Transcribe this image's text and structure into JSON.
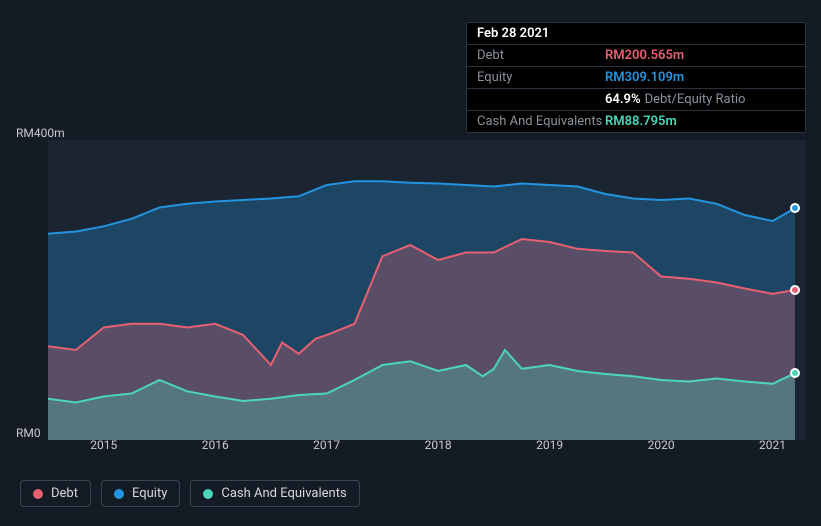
{
  "tooltip": {
    "date": "Feb 28 2021",
    "rows": [
      {
        "label": "Debt",
        "value": "RM200.565m",
        "colorKey": "debt"
      },
      {
        "label": "Equity",
        "value": "RM309.109m",
        "colorKey": "equity"
      },
      {
        "label": "",
        "value": "64.9%",
        "extra": "Debt/Equity Ratio",
        "colorKey": "white"
      },
      {
        "label": "Cash And Equivalents",
        "value": "RM88.795m",
        "colorKey": "cash"
      }
    ]
  },
  "chart": {
    "type": "area",
    "background_color": "#151b24",
    "plot_background": "#1b2531",
    "y_min": 0,
    "y_max": 400,
    "y_labels": [
      {
        "text": "RM400m",
        "v": 400
      },
      {
        "text": "RM0",
        "v": 0
      }
    ],
    "x_min": 2014.5,
    "x_max": 2021.3,
    "x_ticks": [
      2015,
      2016,
      2017,
      2018,
      2019,
      2020,
      2021
    ],
    "series": {
      "equity": {
        "label": "Equity",
        "color": "#2394df",
        "fill": "rgba(35,148,223,0.30)",
        "data": [
          [
            2014.5,
            275
          ],
          [
            2014.75,
            278
          ],
          [
            2015,
            285
          ],
          [
            2015.25,
            295
          ],
          [
            2015.5,
            310
          ],
          [
            2015.75,
            315
          ],
          [
            2016,
            318
          ],
          [
            2016.25,
            320
          ],
          [
            2016.5,
            322
          ],
          [
            2016.75,
            325
          ],
          [
            2017,
            340
          ],
          [
            2017.25,
            345
          ],
          [
            2017.5,
            345
          ],
          [
            2017.75,
            343
          ],
          [
            2018,
            342
          ],
          [
            2018.25,
            340
          ],
          [
            2018.5,
            338
          ],
          [
            2018.75,
            342
          ],
          [
            2019,
            340
          ],
          [
            2019.25,
            338
          ],
          [
            2019.5,
            328
          ],
          [
            2019.75,
            322
          ],
          [
            2020,
            320
          ],
          [
            2020.25,
            322
          ],
          [
            2020.5,
            315
          ],
          [
            2020.75,
            300
          ],
          [
            2021,
            292
          ],
          [
            2021.2,
            309
          ]
        ]
      },
      "debt": {
        "label": "Debt",
        "color": "#e76071",
        "fill": "rgba(231,96,113,0.30)",
        "data": [
          [
            2014.5,
            125
          ],
          [
            2014.75,
            120
          ],
          [
            2015,
            150
          ],
          [
            2015.25,
            155
          ],
          [
            2015.5,
            155
          ],
          [
            2015.75,
            150
          ],
          [
            2016,
            155
          ],
          [
            2016.25,
            140
          ],
          [
            2016.5,
            100
          ],
          [
            2016.6,
            130
          ],
          [
            2016.75,
            115
          ],
          [
            2016.9,
            135
          ],
          [
            2017,
            140
          ],
          [
            2017.25,
            155
          ],
          [
            2017.5,
            245
          ],
          [
            2017.75,
            260
          ],
          [
            2018,
            240
          ],
          [
            2018.25,
            250
          ],
          [
            2018.5,
            250
          ],
          [
            2018.75,
            268
          ],
          [
            2019,
            264
          ],
          [
            2019.25,
            255
          ],
          [
            2019.5,
            252
          ],
          [
            2019.75,
            250
          ],
          [
            2020,
            218
          ],
          [
            2020.25,
            215
          ],
          [
            2020.5,
            210
          ],
          [
            2020.75,
            202
          ],
          [
            2021,
            195
          ],
          [
            2021.2,
            200
          ]
        ]
      },
      "cash": {
        "label": "Cash And Equivalents",
        "color": "#4bd6b9",
        "fill": "rgba(75,214,185,0.30)",
        "data": [
          [
            2014.5,
            55
          ],
          [
            2014.75,
            50
          ],
          [
            2015,
            58
          ],
          [
            2015.25,
            62
          ],
          [
            2015.5,
            80
          ],
          [
            2015.75,
            65
          ],
          [
            2016,
            58
          ],
          [
            2016.25,
            52
          ],
          [
            2016.5,
            55
          ],
          [
            2016.75,
            60
          ],
          [
            2017,
            62
          ],
          [
            2017.25,
            80
          ],
          [
            2017.5,
            100
          ],
          [
            2017.75,
            105
          ],
          [
            2018,
            92
          ],
          [
            2018.25,
            100
          ],
          [
            2018.4,
            85
          ],
          [
            2018.5,
            95
          ],
          [
            2018.6,
            120
          ],
          [
            2018.75,
            95
          ],
          [
            2019,
            100
          ],
          [
            2019.25,
            92
          ],
          [
            2019.5,
            88
          ],
          [
            2019.75,
            85
          ],
          [
            2020,
            80
          ],
          [
            2020.25,
            78
          ],
          [
            2020.5,
            82
          ],
          [
            2020.75,
            78
          ],
          [
            2021,
            75
          ],
          [
            2021.2,
            89
          ]
        ]
      }
    },
    "colors": {
      "debt": "#e76071",
      "equity": "#2394df",
      "cash": "#4bd6b9",
      "white": "#ffffff"
    },
    "legend": [
      {
        "key": "debt",
        "label": "Debt"
      },
      {
        "key": "equity",
        "label": "Equity"
      },
      {
        "key": "cash",
        "label": "Cash And Equivalents"
      }
    ]
  }
}
